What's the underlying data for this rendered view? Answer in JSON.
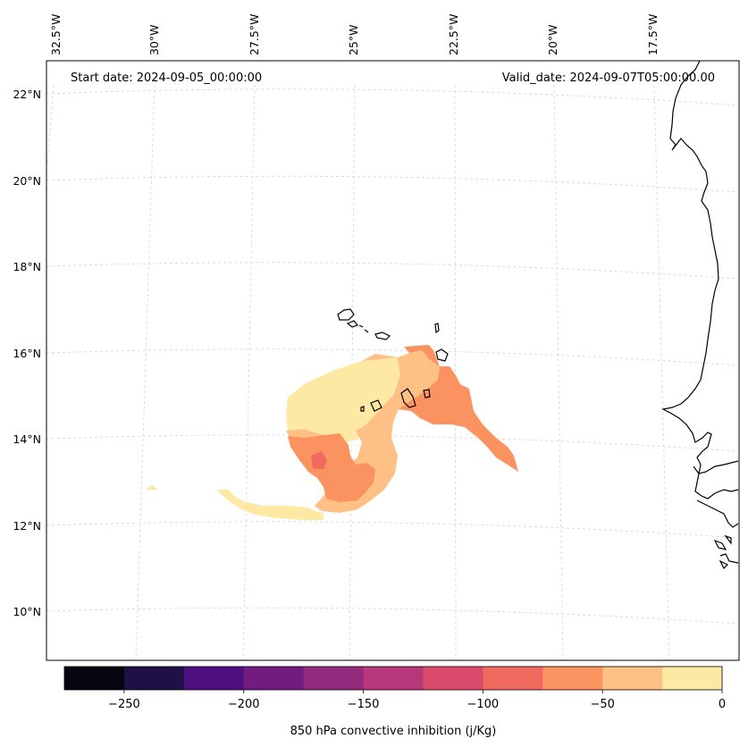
{
  "annotations": {
    "start_date": "Start date: 2024-09-05_00:00:00",
    "valid_date": "Valid_date: 2024-09-07T05:00:00.00"
  },
  "lon_labels": [
    "32.5°W",
    "30°W",
    "27.5°W",
    "25°W",
    "22.5°W",
    "20°W",
    "17.5°W"
  ],
  "lat_labels": [
    "22°N",
    "20°N",
    "18°N",
    "16°N",
    "14°N",
    "12°N",
    "10°N"
  ],
  "colorbar": {
    "label": "850 hPa convective inhibition (j/Kg)",
    "tick_labels": [
      "−250",
      "−200",
      "−150",
      "−100",
      "−50",
      "0"
    ],
    "tick_values": [
      -250,
      -200,
      -150,
      -100,
      -50,
      0
    ],
    "range": [
      -275,
      0
    ],
    "levels": [
      -275,
      -250,
      -225,
      -200,
      -175,
      -150,
      -125,
      -100,
      -75,
      -50,
      -25,
      0
    ],
    "colors": [
      "#05050f",
      "#1f1147",
      "#4f1181",
      "#731c80",
      "#932a7d",
      "#b6377a",
      "#d94a6b",
      "#f06a5f",
      "#fb9361",
      "#fec085",
      "#fde8a4"
    ]
  },
  "colors": {
    "coastline": "#000000",
    "gridline": "#d4d4d4",
    "fill_0_to_-25": "#fde8a4",
    "fill_-25_to_-50": "#fec085",
    "fill_-50_to_-75": "#fb9361",
    "fill_-75_to_-100": "#f06a5f"
  }
}
